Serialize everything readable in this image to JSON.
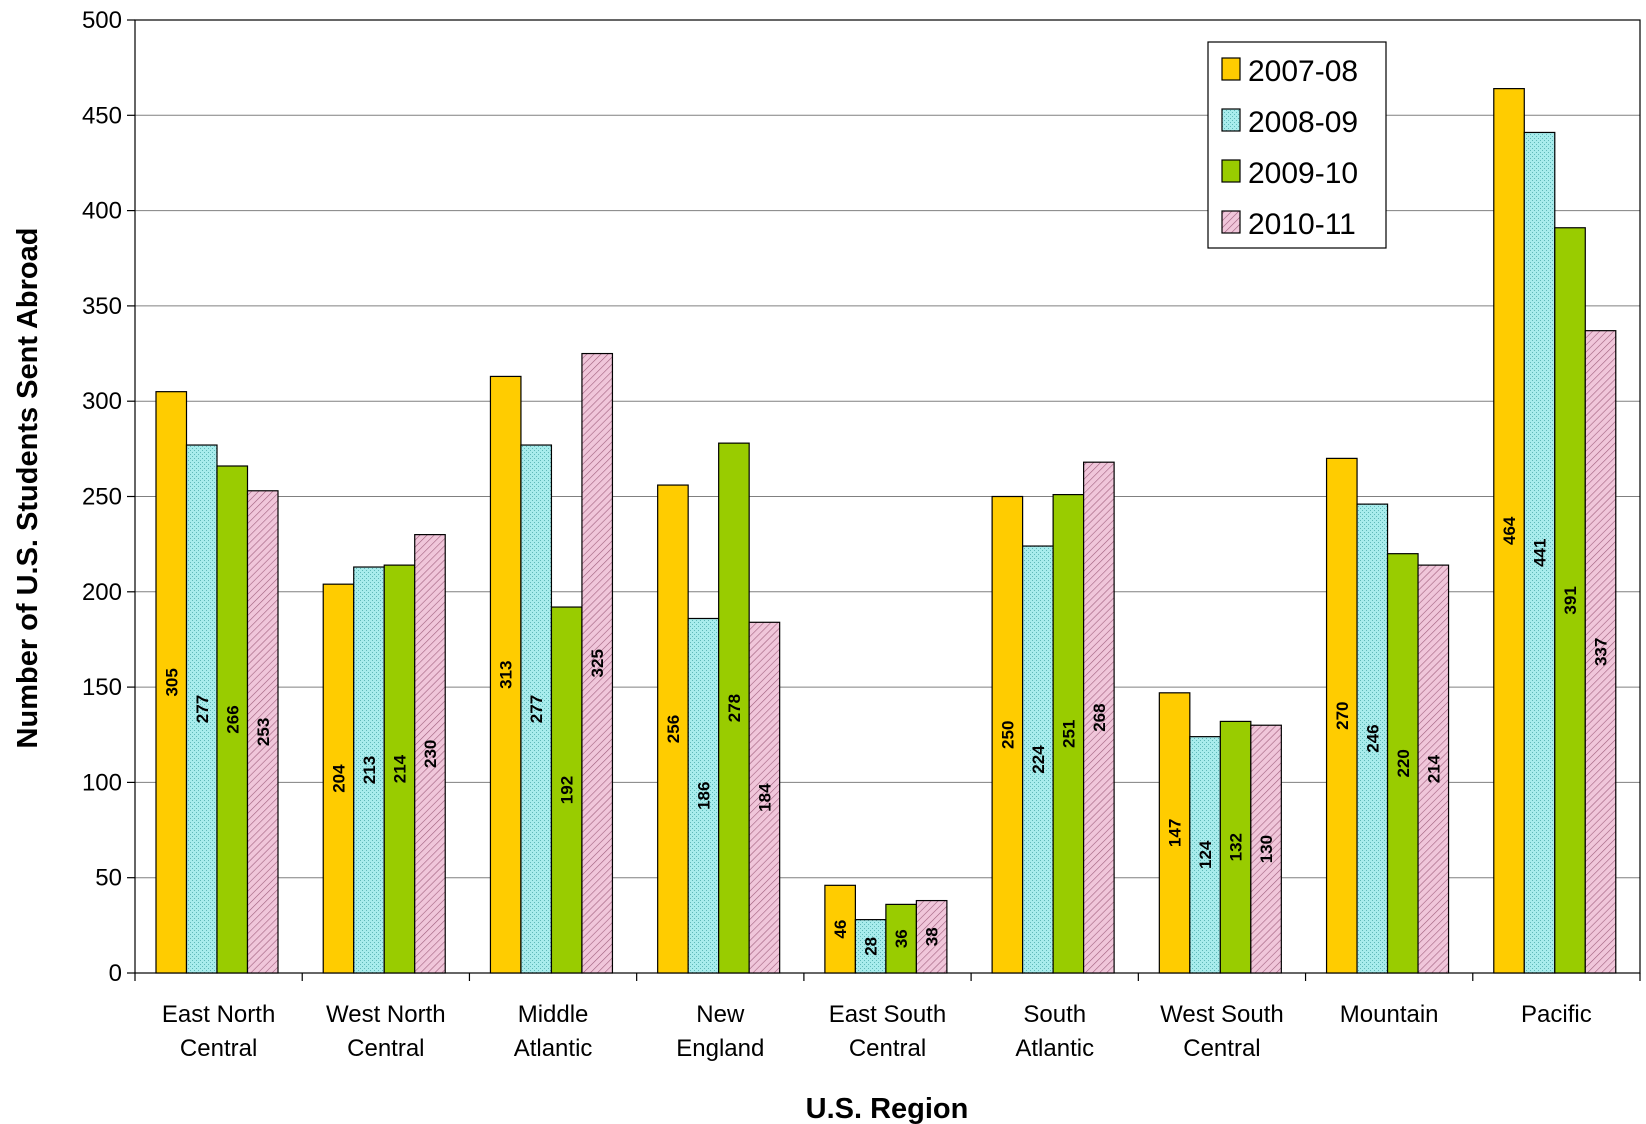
{
  "chart_data": {
    "type": "bar",
    "title": "",
    "xlabel": "U.S. Region",
    "ylabel": "Number of U.S. Students Sent Abroad",
    "ylim": [
      0,
      500
    ],
    "yticks": [
      0,
      50,
      100,
      150,
      200,
      250,
      300,
      350,
      400,
      450,
      500
    ],
    "grid": "horizontal",
    "legend_position": "top-right",
    "categories": [
      [
        "East North",
        "Central"
      ],
      [
        "West North",
        "Central"
      ],
      [
        "Middle",
        "Atlantic"
      ],
      [
        "New",
        "England"
      ],
      [
        "East South",
        "Central"
      ],
      [
        "South",
        "Atlantic"
      ],
      [
        "West South",
        "Central"
      ],
      [
        "Mountain"
      ],
      [
        "Pacific"
      ]
    ],
    "series": [
      {
        "name": "2007-08",
        "color": "#FFCC00",
        "pattern": "solid",
        "values": [
          305,
          204,
          313,
          256,
          46,
          250,
          147,
          270,
          464
        ]
      },
      {
        "name": "2008-09",
        "color": "#99E6E6",
        "pattern": "dotted",
        "values": [
          277,
          213,
          277,
          186,
          28,
          224,
          124,
          246,
          441
        ]
      },
      {
        "name": "2009-10",
        "color": "#99CC00",
        "pattern": "solid",
        "values": [
          266,
          214,
          192,
          278,
          36,
          251,
          132,
          220,
          391
        ]
      },
      {
        "name": "2010-11",
        "color": "#E6B3CC",
        "pattern": "hatched",
        "values": [
          253,
          230,
          325,
          184,
          38,
          268,
          130,
          214,
          337
        ]
      }
    ]
  }
}
